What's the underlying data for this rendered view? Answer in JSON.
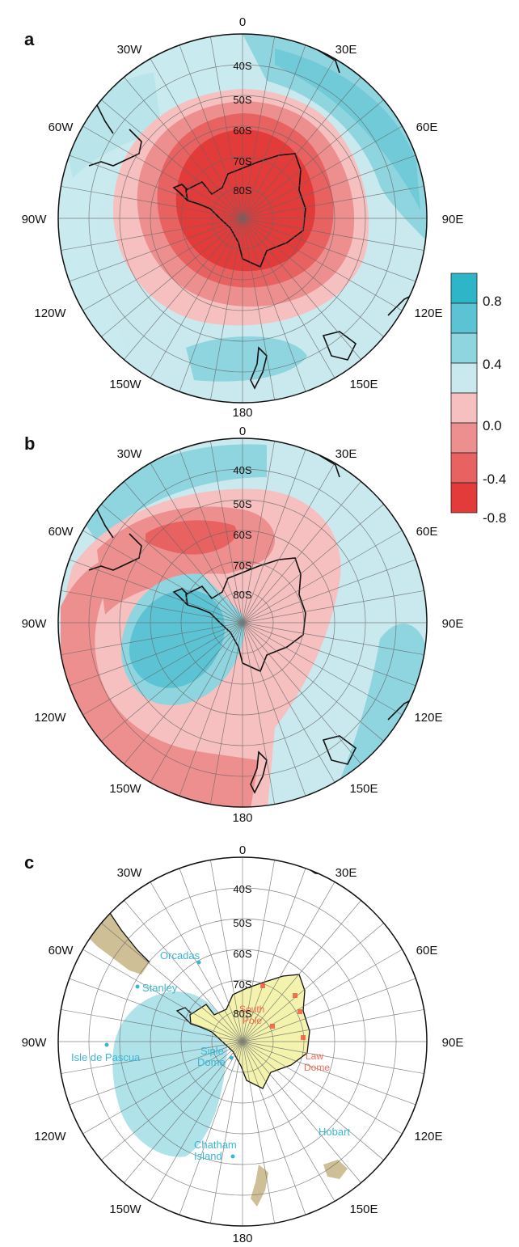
{
  "panels": [
    {
      "letter": "a",
      "lon_labels": {
        "0": "0",
        "30E": "30E",
        "60E": "60E",
        "90E": "90E",
        "120E": "120E",
        "150E": "150E",
        "180": "180",
        "150W": "150W",
        "120W": "120W",
        "90W": "90W",
        "60W": "60W",
        "30W": "30W"
      },
      "lat_labels": [
        "40S",
        "50S",
        "60S",
        "70S",
        "80S"
      ]
    },
    {
      "letter": "b",
      "lon_labels": {
        "0": "0",
        "30E": "30E",
        "60E": "60E",
        "90E": "90E",
        "120E": "120E",
        "150E": "150E",
        "180": "180",
        "150W": "150W",
        "120W": "120W",
        "90W": "90W",
        "60W": "60W",
        "30W": "30W"
      },
      "lat_labels": [
        "40S",
        "50S",
        "60S",
        "70S",
        "80S"
      ]
    },
    {
      "letter": "c",
      "lon_labels": {
        "0": "0",
        "30E": "30E",
        "60E": "60E",
        "90E": "90E",
        "120E": "120E",
        "150E": "150E",
        "180": "180",
        "150W": "150W",
        "120W": "120W",
        "90W": "90W",
        "60W": "60W",
        "30W": "30W"
      },
      "lat_labels": [
        "40S",
        "50S",
        "60S",
        "70S",
        "80S"
      ],
      "sites_blue": {
        "orcadas": "Orcadas",
        "stanley": "Stanley",
        "isle": "Isle de Pascua",
        "siple1": "Siple",
        "siple2": "Dome",
        "chatham1": "Chatham",
        "chatham2": "Island",
        "hobart": "Hobart"
      },
      "sites_red": {
        "south1": "South",
        "south2": "Pole",
        "law1": "Law",
        "law2": "Dome"
      }
    }
  ],
  "colorbar": {
    "labels": [
      "0.8",
      "0.4",
      "0.0",
      "-0.4",
      "-0.8"
    ],
    "colors": [
      "#2fb5c8",
      "#5bc3d3",
      "#8fd5df",
      "#c9e9ee",
      "#f6c0c0",
      "#ee8f8f",
      "#e86262",
      "#e33a3a"
    ]
  },
  "colors": {
    "land": "#cfbf96",
    "antarctica_c": "#f3f3ad",
    "ocean_white": "#ffffff",
    "blue_light": "#c9e9ee",
    "blue_mid": "#8fd5df",
    "blue_dark": "#5bc3d3",
    "red_light": "#f6c0c0",
    "red_mid": "#ee8f8f",
    "red_dark": "#e33a3a"
  }
}
